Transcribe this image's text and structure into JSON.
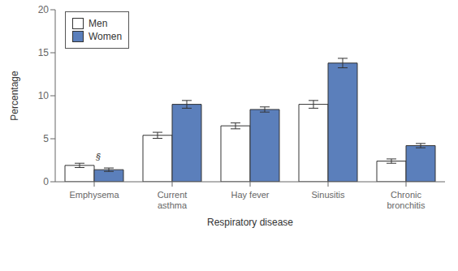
{
  "chart_data": {
    "type": "bar",
    "categories": [
      "Emphysema",
      "Current\nasthma",
      "Hay fever",
      "Sinusitis",
      "Chronic\nbronchitis"
    ],
    "series": [
      {
        "name": "Men",
        "color": "#ffffff",
        "values": [
          1.9,
          5.4,
          6.5,
          9.0,
          2.4
        ],
        "errors": [
          0.25,
          0.35,
          0.35,
          0.45,
          0.25
        ]
      },
      {
        "name": "Women",
        "color": "#5b7fbb",
        "values": [
          1.4,
          9.0,
          8.4,
          13.8,
          4.2
        ],
        "errors": [
          0.2,
          0.45,
          0.3,
          0.55,
          0.25
        ]
      }
    ],
    "xlabel": "Respiratory disease",
    "ylabel": "Percentage",
    "ylim": [
      0,
      20
    ],
    "yticks": [
      0,
      5,
      10,
      15,
      20
    ],
    "legend": "upper left",
    "grid": false,
    "annotations": [
      {
        "text": "§",
        "category": "Emphysema",
        "series": "Men"
      }
    ]
  }
}
